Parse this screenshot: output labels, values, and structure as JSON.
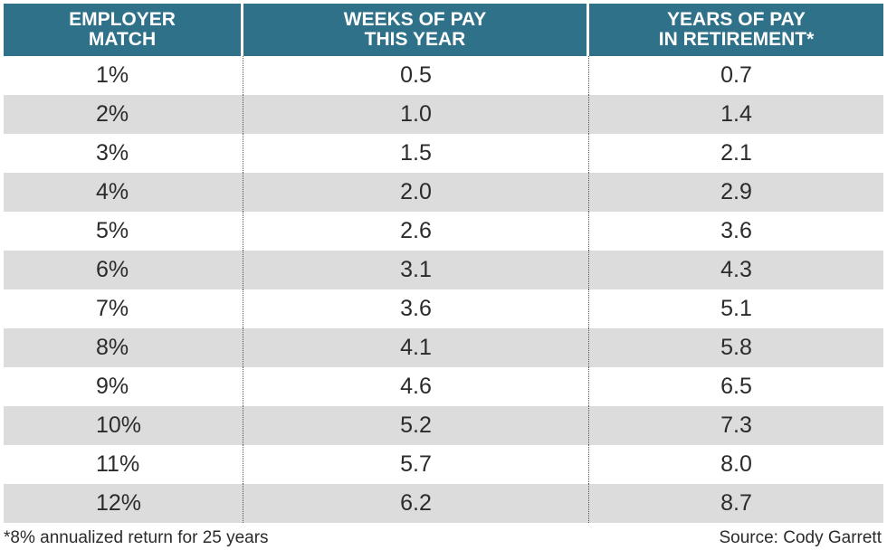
{
  "headers": [
    {
      "line1": "EMPLOYER",
      "line2": "MATCH"
    },
    {
      "line1": "WEEKS OF PAY",
      "line2": "THIS YEAR"
    },
    {
      "line1": "YEARS OF PAY",
      "line2": "IN RETIREMENT*"
    }
  ],
  "rows": [
    [
      "1%",
      "0.5",
      "0.7"
    ],
    [
      "2%",
      "1.0",
      "1.4"
    ],
    [
      "3%",
      "1.5",
      "2.1"
    ],
    [
      "4%",
      "2.0",
      "2.9"
    ],
    [
      "5%",
      "2.6",
      "3.6"
    ],
    [
      "6%",
      "3.1",
      "4.3"
    ],
    [
      "7%",
      "3.6",
      "5.1"
    ],
    [
      "8%",
      "4.1",
      "5.8"
    ],
    [
      "9%",
      "4.6",
      "6.5"
    ],
    [
      "10%",
      "5.2",
      "7.3"
    ],
    [
      "11%",
      "5.7",
      "8.0"
    ],
    [
      "12%",
      "6.2",
      "8.7"
    ]
  ],
  "footer": {
    "footnote": "*8% annualized return for 25 years",
    "source": "Source: Cody Garrett"
  },
  "colors": {
    "header_bg": "#2f7189",
    "stripe": "#dcdcdc"
  },
  "chart_data": {
    "type": "table",
    "columns": [
      "EMPLOYER MATCH",
      "WEEKS OF PAY THIS YEAR",
      "YEARS OF PAY IN RETIREMENT*"
    ],
    "rows": [
      [
        "1%",
        0.5,
        0.7
      ],
      [
        "2%",
        1.0,
        1.4
      ],
      [
        "3%",
        1.5,
        2.1
      ],
      [
        "4%",
        2.0,
        2.9
      ],
      [
        "5%",
        2.6,
        3.6
      ],
      [
        "6%",
        3.1,
        4.3
      ],
      [
        "7%",
        3.6,
        5.1
      ],
      [
        "8%",
        4.1,
        5.8
      ],
      [
        "9%",
        4.6,
        6.5
      ],
      [
        "10%",
        5.2,
        7.3
      ],
      [
        "11%",
        5.7,
        8.0
      ],
      [
        "12%",
        6.2,
        8.7
      ]
    ]
  }
}
